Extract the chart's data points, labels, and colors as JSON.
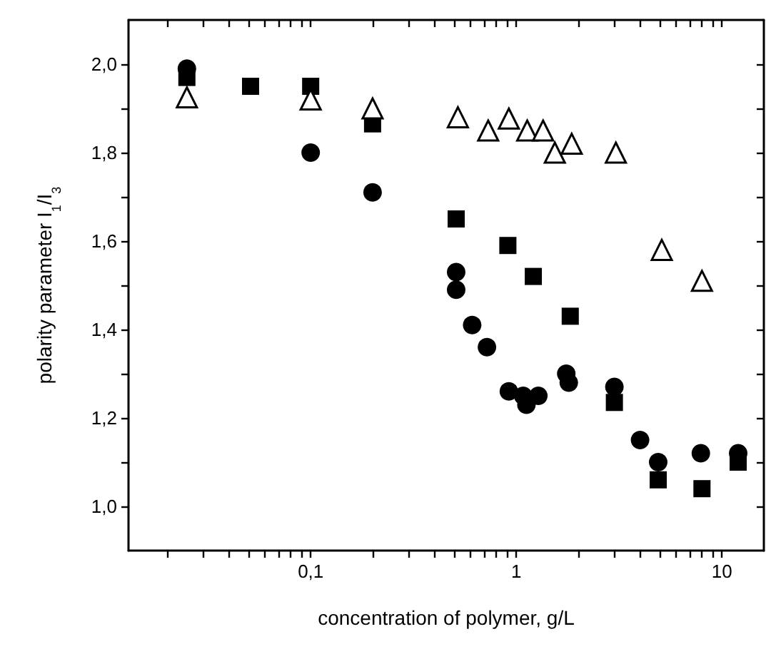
{
  "chart_data": {
    "type": "scatter",
    "xlabel": "concentration of polymer, g/L",
    "ylabel": "polarity parameter I$_{1}$/I$_{3}$",
    "log": "x",
    "xlim": [
      0.013,
      16
    ],
    "ylim": [
      0.9,
      2.1
    ],
    "xticks": [
      {
        "value": 0.02,
        "label": null
      },
      {
        "value": 0.03,
        "label": null
      },
      {
        "value": 0.04,
        "label": null
      },
      {
        "value": 0.05,
        "label": null
      },
      {
        "value": 0.06,
        "label": null
      },
      {
        "value": 0.07,
        "label": null
      },
      {
        "value": 0.08,
        "label": null
      },
      {
        "value": 0.09,
        "label": null
      },
      {
        "value": 0.1,
        "label": "0,1"
      },
      {
        "value": 0.2,
        "label": null
      },
      {
        "value": 0.3,
        "label": null
      },
      {
        "value": 0.4,
        "label": null
      },
      {
        "value": 0.5,
        "label": null
      },
      {
        "value": 0.6,
        "label": null
      },
      {
        "value": 0.7,
        "label": null
      },
      {
        "value": 0.8,
        "label": null
      },
      {
        "value": 0.9,
        "label": null
      },
      {
        "value": 1,
        "label": "1"
      },
      {
        "value": 2,
        "label": null
      },
      {
        "value": 3,
        "label": null
      },
      {
        "value": 4,
        "label": null
      },
      {
        "value": 5,
        "label": null
      },
      {
        "value": 6,
        "label": null
      },
      {
        "value": 7,
        "label": null
      },
      {
        "value": 8,
        "label": null
      },
      {
        "value": 9,
        "label": null
      },
      {
        "value": 10,
        "label": "10"
      }
    ],
    "yticks": [
      {
        "value": 1.0,
        "label": "1,0"
      },
      {
        "value": 1.1,
        "label": null
      },
      {
        "value": 1.2,
        "label": "1,2"
      },
      {
        "value": 1.3,
        "label": null
      },
      {
        "value": 1.4,
        "label": "1,4"
      },
      {
        "value": 1.5,
        "label": null
      },
      {
        "value": 1.6,
        "label": "1,6"
      },
      {
        "value": 1.7,
        "label": null
      },
      {
        "value": 1.8,
        "label": "1,8"
      },
      {
        "value": 1.9,
        "label": null
      },
      {
        "value": 2.0,
        "label": "2,0"
      }
    ],
    "series": [
      {
        "color": "#000000",
        "marker": "circle",
        "x": [
          0.025,
          0.1,
          0.2,
          0.51,
          0.51,
          0.61,
          0.72,
          0.92,
          1.08,
          1.12,
          1.28,
          1.75,
          1.8,
          3.0,
          4.0,
          4.9,
          7.9,
          12
        ],
        "values": [
          1.99,
          1.8,
          1.71,
          1.53,
          1.49,
          1.41,
          1.36,
          1.26,
          1.25,
          1.23,
          1.25,
          1.3,
          1.28,
          1.27,
          1.15,
          1.1,
          1.12,
          1.12
        ]
      },
      {
        "color": "#000000",
        "marker": "square",
        "x": [
          0.025,
          0.051,
          0.1,
          0.2,
          0.51,
          0.91,
          1.21,
          1.83,
          3.0,
          4.9,
          8.0,
          12
        ],
        "values": [
          1.97,
          1.95,
          1.95,
          1.865,
          1.65,
          1.59,
          1.52,
          1.43,
          1.235,
          1.06,
          1.04,
          1.1
        ]
      },
      {
        "color": "#000000",
        "marker": "triangle",
        "x": [
          0.025,
          0.1,
          0.2,
          0.52,
          0.73,
          0.92,
          1.13,
          1.35,
          1.54,
          1.86,
          3.05,
          5.1,
          8.0
        ],
        "values": [
          1.925,
          1.92,
          1.9,
          1.88,
          1.85,
          1.877,
          1.85,
          1.85,
          1.8,
          1.82,
          1.8,
          1.58,
          1.51
        ]
      }
    ]
  }
}
